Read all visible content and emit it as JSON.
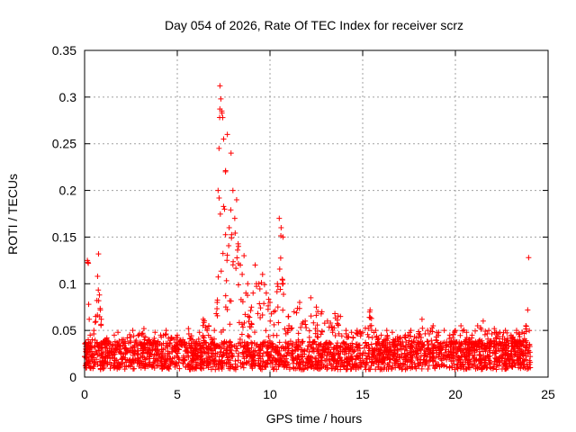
{
  "chart_data": {
    "type": "scatter",
    "title": "Day 054 of 2026, Rate Of TEC Index for receiver scrz",
    "xlabel": "GPS time / hours",
    "ylabel": "ROTI / TECUs",
    "xlim": [
      0,
      25
    ],
    "ylim": [
      0,
      0.35
    ],
    "xticks": [
      0,
      5,
      10,
      15,
      20,
      25
    ],
    "xtick_labels": [
      "0",
      "5",
      "10",
      "15",
      "20",
      "25"
    ],
    "yticks": [
      0,
      0.05,
      0.1,
      0.15,
      0.2,
      0.25,
      0.3,
      0.35
    ],
    "ytick_labels": [
      "0",
      "0.05",
      "0.1",
      "0.15",
      "0.2",
      "0.25",
      "0.3",
      "0.35"
    ],
    "grid": true,
    "marker": "+",
    "color": "#ff0000",
    "series": [
      {
        "name": "ROTI",
        "x": [
          0.0,
          0.1,
          0.15,
          0.2,
          0.22,
          0.25,
          0.3,
          0.5,
          0.6,
          0.7,
          0.75,
          0.8,
          0.85,
          0.9,
          1.0,
          1.2,
          1.4,
          1.6,
          1.8,
          2.0,
          2.3,
          2.6,
          2.9,
          3.2,
          3.5,
          3.8,
          4.1,
          4.4,
          4.7,
          5.0,
          5.3,
          5.6,
          6.0,
          6.2,
          6.4,
          6.7,
          7.0,
          7.1,
          7.15,
          7.2,
          7.25,
          7.3,
          7.35,
          7.4,
          7.45,
          7.5,
          7.55,
          7.6,
          7.7,
          7.8,
          7.9,
          8.0,
          8.1,
          8.2,
          8.3,
          8.4,
          8.5,
          8.6,
          8.7,
          8.8,
          9.0,
          9.2,
          9.4,
          9.6,
          9.8,
          10.0,
          10.2,
          10.4,
          10.5,
          10.6,
          10.7,
          11.0,
          11.3,
          11.6,
          11.9,
          12.2,
          12.5,
          12.8,
          13.1,
          13.5,
          13.8,
          14.1,
          14.4,
          14.7,
          15.0,
          15.4,
          15.7,
          16.0,
          16.3,
          16.6,
          17.0,
          17.3,
          17.6,
          17.9,
          18.2,
          18.5,
          18.8,
          19.1,
          19.4,
          19.7,
          20.0,
          20.3,
          20.6,
          20.9,
          21.2,
          21.5,
          21.8,
          22.1,
          22.4,
          22.7,
          23.0,
          23.3,
          23.6,
          23.8,
          23.9,
          23.95,
          24.0
        ],
        "y": [
          0.022,
          0.03,
          0.125,
          0.122,
          0.078,
          0.062,
          0.045,
          0.05,
          0.065,
          0.108,
          0.132,
          0.088,
          0.072,
          0.062,
          0.038,
          0.042,
          0.035,
          0.045,
          0.048,
          0.04,
          0.042,
          0.05,
          0.045,
          0.052,
          0.04,
          0.048,
          0.045,
          0.05,
          0.042,
          0.045,
          0.04,
          0.052,
          0.035,
          0.048,
          0.062,
          0.055,
          0.05,
          0.068,
          0.08,
          0.2,
          0.245,
          0.312,
          0.298,
          0.285,
          0.278,
          0.255,
          0.18,
          0.22,
          0.26,
          0.16,
          0.24,
          0.2,
          0.17,
          0.19,
          0.14,
          0.12,
          0.11,
          0.13,
          0.09,
          0.1,
          0.075,
          0.12,
          0.1,
          0.11,
          0.09,
          0.08,
          0.07,
          0.1,
          0.17,
          0.16,
          0.15,
          0.065,
          0.07,
          0.08,
          0.06,
          0.085,
          0.075,
          0.07,
          0.06,
          0.068,
          0.065,
          0.05,
          0.048,
          0.05,
          0.048,
          0.072,
          0.05,
          0.045,
          0.05,
          0.048,
          0.042,
          0.045,
          0.05,
          0.042,
          0.062,
          0.05,
          0.055,
          0.048,
          0.05,
          0.045,
          0.05,
          0.055,
          0.048,
          0.045,
          0.055,
          0.06,
          0.05,
          0.052,
          0.048,
          0.05,
          0.045,
          0.05,
          0.048,
          0.055,
          0.072,
          0.128,
          0.035
        ]
      }
    ]
  }
}
